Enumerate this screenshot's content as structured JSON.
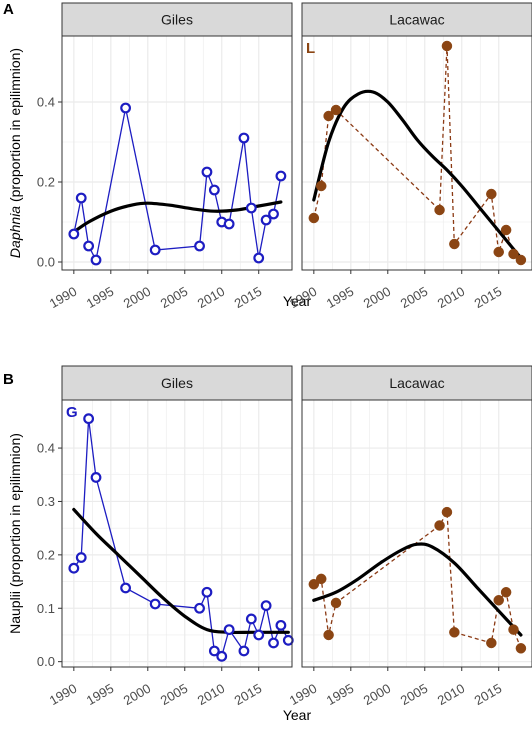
{
  "figure": {
    "xlabel": "Year",
    "colors": {
      "giles": "#1d1dc2",
      "lacawac": "#8b4513",
      "lacawac_line": "#8b3a14",
      "trend": "#000000",
      "strip_fill": "#d9d9d9",
      "grid": "#ebebeb",
      "frame": "#333333"
    }
  },
  "chart_data": [
    {
      "type": "line",
      "panel_letter": "A",
      "ylabel_italic": "Daphnia",
      "ylabel_rest": " (proportion in epilimnion)",
      "xlim": [
        1988.4,
        2019.5
      ],
      "ylim": [
        -0.02,
        0.565
      ],
      "xticks": [
        1990,
        1995,
        2000,
        2005,
        2010,
        2015
      ],
      "yticks": [
        0.0,
        0.2,
        0.4
      ],
      "ytick_labels": [
        "0.0",
        "0.2",
        "0.4"
      ],
      "grid": true,
      "facets": [
        {
          "name": "Giles",
          "corner_label": "",
          "marker": "open-circle",
          "line_style": "solid",
          "x": [
            1990,
            1991,
            1992,
            1993,
            1997,
            2001,
            2007,
            2008,
            2009,
            2010,
            2011,
            2013,
            2014,
            2015,
            2016,
            2017,
            2018
          ],
          "y": [
            0.07,
            0.16,
            0.04,
            0.005,
            0.385,
            0.03,
            0.04,
            0.225,
            0.18,
            0.1,
            0.095,
            0.31,
            0.135,
            0.01,
            0.105,
            0.12,
            0.215
          ],
          "trend": {
            "x": [
              1990,
              1992,
              1995,
              1998,
              2000,
              2003,
              2006,
              2009,
              2012,
              2015,
              2018
            ],
            "y": [
              0.075,
              0.1,
              0.127,
              0.143,
              0.147,
              0.142,
              0.133,
              0.127,
              0.13,
              0.14,
              0.15
            ]
          }
        },
        {
          "name": "Lacawac",
          "corner_label": "L",
          "marker": "filled-circle",
          "line_style": "dashed",
          "x": [
            1990,
            1991,
            1992,
            1993,
            2007,
            2008,
            2009,
            2014,
            2015,
            2016,
            2017,
            2018
          ],
          "y": [
            0.11,
            0.19,
            0.365,
            0.38,
            0.13,
            0.54,
            0.045,
            0.17,
            0.025,
            0.08,
            0.02,
            0.005
          ],
          "trend": {
            "x": [
              1990,
              1992,
              1994,
              1996,
              1998,
              2000,
              2002,
              2004,
              2006,
              2008,
              2010,
              2012,
              2014,
              2016,
              2018
            ],
            "y": [
              0.155,
              0.3,
              0.385,
              0.42,
              0.425,
              0.4,
              0.355,
              0.305,
              0.265,
              0.23,
              0.19,
              0.145,
              0.1,
              0.055,
              0.01
            ]
          }
        }
      ]
    },
    {
      "type": "line",
      "panel_letter": "B",
      "ylabel_italic": "",
      "ylabel_rest": "Nauplii (proportion in epilimnion)",
      "xlim": [
        1988.4,
        2019.5
      ],
      "ylim": [
        -0.01,
        0.49
      ],
      "xticks": [
        1990,
        1995,
        2000,
        2005,
        2010,
        2015
      ],
      "yticks": [
        0.0,
        0.1,
        0.2,
        0.3,
        0.4
      ],
      "ytick_labels": [
        "0.0",
        "0.1",
        "0.2",
        "0.3",
        "0.4"
      ],
      "grid": true,
      "facets": [
        {
          "name": "Giles",
          "corner_label": "G",
          "marker": "open-circle",
          "line_style": "solid",
          "x": [
            1990,
            1991,
            1992,
            1993,
            1997,
            2001,
            2007,
            2008,
            2009,
            2010,
            2011,
            2013,
            2014,
            2015,
            2016,
            2017,
            2018,
            2019
          ],
          "y": [
            0.175,
            0.195,
            0.455,
            0.345,
            0.138,
            0.108,
            0.1,
            0.13,
            0.02,
            0.01,
            0.06,
            0.02,
            0.08,
            0.05,
            0.105,
            0.035,
            0.068,
            0.04
          ],
          "trend": {
            "x": [
              1990,
              1993,
              1996,
              1999,
              2002,
              2005,
              2008,
              2011,
              2014,
              2017,
              2019
            ],
            "y": [
              0.285,
              0.24,
              0.2,
              0.16,
              0.12,
              0.085,
              0.06,
              0.055,
              0.055,
              0.055,
              0.055
            ]
          }
        },
        {
          "name": "Lacawac",
          "corner_label": "",
          "marker": "filled-circle",
          "line_style": "dashed",
          "x": [
            1990,
            1991,
            1992,
            1993,
            2007,
            2008,
            2009,
            2014,
            2015,
            2016,
            2017,
            2018
          ],
          "y": [
            0.145,
            0.155,
            0.05,
            0.11,
            0.255,
            0.28,
            0.055,
            0.035,
            0.115,
            0.13,
            0.06,
            0.025
          ],
          "trend": {
            "x": [
              1990,
              1993,
              1996,
              1999,
              2002,
              2004,
              2006,
              2009,
              2012,
              2015,
              2018
            ],
            "y": [
              0.115,
              0.13,
              0.155,
              0.185,
              0.21,
              0.22,
              0.215,
              0.185,
              0.14,
              0.095,
              0.05
            ]
          }
        }
      ]
    }
  ]
}
